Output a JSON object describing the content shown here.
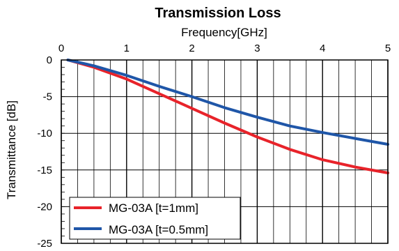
{
  "chart_data": {
    "type": "line",
    "title": "Transmission Loss",
    "xlabel": "Frequency[GHz]",
    "ylabel": "Transmittance [dB]",
    "xlim": [
      0,
      5
    ],
    "ylim": [
      -25,
      0
    ],
    "x_ticks": [
      0,
      1,
      2,
      3,
      4,
      5
    ],
    "y_ticks": [
      0,
      -5,
      -10,
      -15,
      -20,
      -25
    ],
    "x_axis_position": "top",
    "grid": true,
    "legend_position": "bottom-left",
    "series": [
      {
        "name": "MG-03A [t=1mm]",
        "color": "#e8232a",
        "x": [
          0.1,
          0.5,
          1.0,
          1.5,
          2.0,
          2.5,
          3.0,
          3.5,
          4.0,
          4.5,
          5.0
        ],
        "y": [
          0,
          -1.0,
          -2.6,
          -4.6,
          -6.6,
          -8.6,
          -10.5,
          -12.2,
          -13.6,
          -14.6,
          -15.4
        ]
      },
      {
        "name": "MG-03A [t=0.5mm]",
        "color": "#1f56a8",
        "x": [
          0.1,
          0.5,
          1.0,
          1.5,
          2.0,
          2.5,
          3.0,
          3.5,
          4.0,
          4.5,
          5.0
        ],
        "y": [
          0,
          -0.8,
          -2.1,
          -3.6,
          -5.0,
          -6.5,
          -7.8,
          -9.0,
          -9.9,
          -10.7,
          -11.5
        ]
      }
    ]
  }
}
